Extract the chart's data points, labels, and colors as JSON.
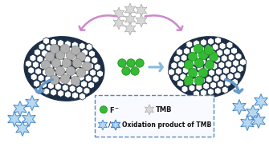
{
  "bg_color": "#ffffff",
  "graphene_color": "#1c2e45",
  "graphene_hole_color": "#ffffff",
  "v_cluster_color_gray": "#b0b0b0",
  "v_cluster_color_green": "#33bb33",
  "tmb_star_color": "#d8d8d8",
  "tmb_star_edge": "#aaaaaa",
  "fluoride_color": "#33bb33",
  "fluoride_edge": "#228822",
  "oxidized_tmb_fill": "#b8d8f0",
  "oxidized_tmb_edge": "#4488cc",
  "arrow_purple": "#cc88cc",
  "arrow_blue_light": "#88bbdd",
  "arrow_blue": "#6699cc",
  "legend_border": "#5588bb",
  "legend_bg": "#f8faff",
  "legend_text": "#111111"
}
